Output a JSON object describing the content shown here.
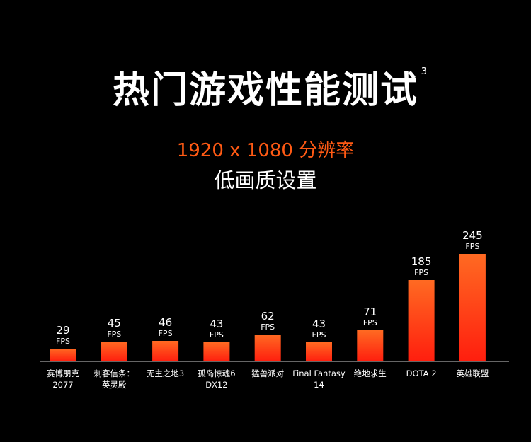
{
  "heading": {
    "title": "热门游戏性能测试",
    "footnote": "3",
    "resolution_num": "1920 x 1080",
    "resolution_label": "分辨率",
    "setting": "低画质设置"
  },
  "chart_data": {
    "type": "bar",
    "unit": "FPS",
    "categories": [
      [
        "赛博朋克",
        "2077"
      ],
      [
        "刺客信条：",
        "英灵殿"
      ],
      [
        "无主之地3"
      ],
      [
        "孤岛惊魂6",
        "DX12"
      ],
      [
        "猛兽派对"
      ],
      [
        "Final Fantasy",
        "14"
      ],
      [
        "绝地求生"
      ],
      [
        "DOTA 2"
      ],
      [
        "英雄联盟"
      ]
    ],
    "values": [
      29,
      45,
      46,
      43,
      62,
      43,
      71,
      185,
      245
    ],
    "colors": {
      "bar_top": "#ff6a22",
      "bar_bottom": "#ff1e0e",
      "axis": "#666666",
      "text": "#ffffff"
    }
  }
}
